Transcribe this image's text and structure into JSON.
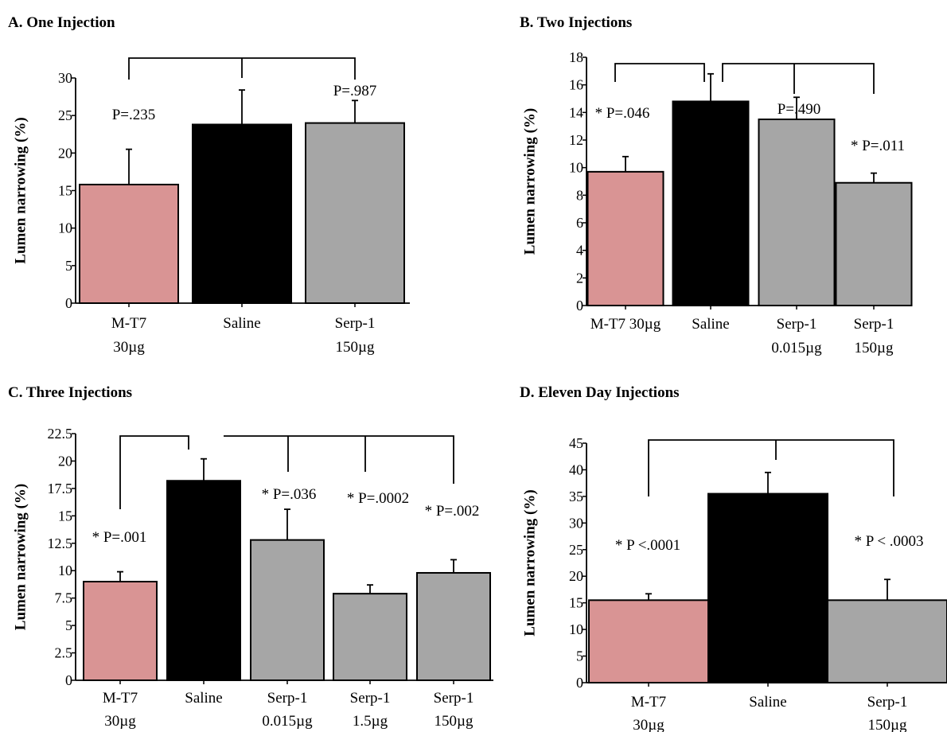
{
  "chart_data": [
    {
      "type": "bar",
      "title": "A. One Injection",
      "ylabel": "Lumen narrowing (%)",
      "xlabel": "",
      "ylim": [
        0,
        30
      ],
      "yticks": [
        "0",
        "5",
        "10",
        "15",
        "20",
        "25",
        "30"
      ],
      "categories": [
        [
          "M-T7",
          "30µg"
        ],
        [
          "Saline"
        ],
        [
          "Serp-1",
          "150µg"
        ]
      ],
      "values": [
        15.8,
        23.8,
        24.0
      ],
      "errors": [
        4.7,
        4.6,
        3.0
      ],
      "colors": [
        "#d99494",
        "#000000",
        "#a6a6a6"
      ],
      "annotations": [
        "P=.235",
        "",
        "P=.987"
      ],
      "grid": false
    },
    {
      "type": "bar",
      "title": "B. Two Injections",
      "ylabel": "Lumen narrowing (%)",
      "xlabel": "",
      "ylim": [
        0,
        18
      ],
      "yticks": [
        "0",
        "2",
        "4",
        "6",
        "8",
        "10",
        "12",
        "14",
        "16",
        "18"
      ],
      "categories": [
        [
          "M-T7 30µg"
        ],
        [
          "Saline"
        ],
        [
          "Serp-1",
          "0.015µg"
        ],
        [
          "Serp-1",
          "150µg"
        ]
      ],
      "values": [
        9.7,
        14.8,
        13.5,
        8.9
      ],
      "errors": [
        1.1,
        2.0,
        1.6,
        0.7
      ],
      "colors": [
        "#d99494",
        "#000000",
        "#a6a6a6",
        "#a6a6a6"
      ],
      "annotations": [
        "* P=.046",
        "",
        "P=.490",
        "* P=.011"
      ],
      "grid": false
    },
    {
      "type": "bar",
      "title": "C. Three Injections",
      "ylabel": "Lumen narrowing (%)",
      "xlabel": "",
      "ylim": [
        0,
        22.5
      ],
      "yticks": [
        "0",
        "2.5",
        "5",
        "7.5",
        "10",
        "12.5",
        "15",
        "17.5",
        "20",
        "22.5"
      ],
      "categories": [
        [
          "M-T7",
          "30µg"
        ],
        [
          "Saline"
        ],
        [
          "Serp-1",
          "0.015µg"
        ],
        [
          "Serp-1",
          "1.5µg"
        ],
        [
          "Serp-1",
          "150µg"
        ]
      ],
      "values": [
        9.0,
        18.2,
        12.8,
        7.9,
        9.8
      ],
      "errors": [
        0.9,
        2.0,
        2.8,
        0.8,
        1.2
      ],
      "colors": [
        "#d99494",
        "#000000",
        "#a6a6a6",
        "#a6a6a6",
        "#a6a6a6"
      ],
      "annotations": [
        "* P=.001",
        "",
        "* P=.036",
        "* P=.0002",
        "* P=.002"
      ],
      "grid": false
    },
    {
      "type": "bar",
      "title": "D. Eleven Day  Injections",
      "ylabel": "Lumen narrowing (%)",
      "xlabel": "",
      "ylim": [
        0,
        45
      ],
      "yticks": [
        "0",
        "5",
        "10",
        "15",
        "20",
        "25",
        "30",
        "35",
        "40",
        "45"
      ],
      "categories": [
        [
          "M-T7",
          "30µg"
        ],
        [
          "Saline"
        ],
        [
          "Serp-1",
          "150µg"
        ]
      ],
      "values": [
        15.5,
        35.5,
        15.5
      ],
      "errors": [
        1.2,
        4.0,
        3.9
      ],
      "colors": [
        "#d99494",
        "#000000",
        "#a6a6a6"
      ],
      "annotations": [
        "* P <.0001",
        "",
        "* P < .0003"
      ],
      "grid": false
    }
  ]
}
